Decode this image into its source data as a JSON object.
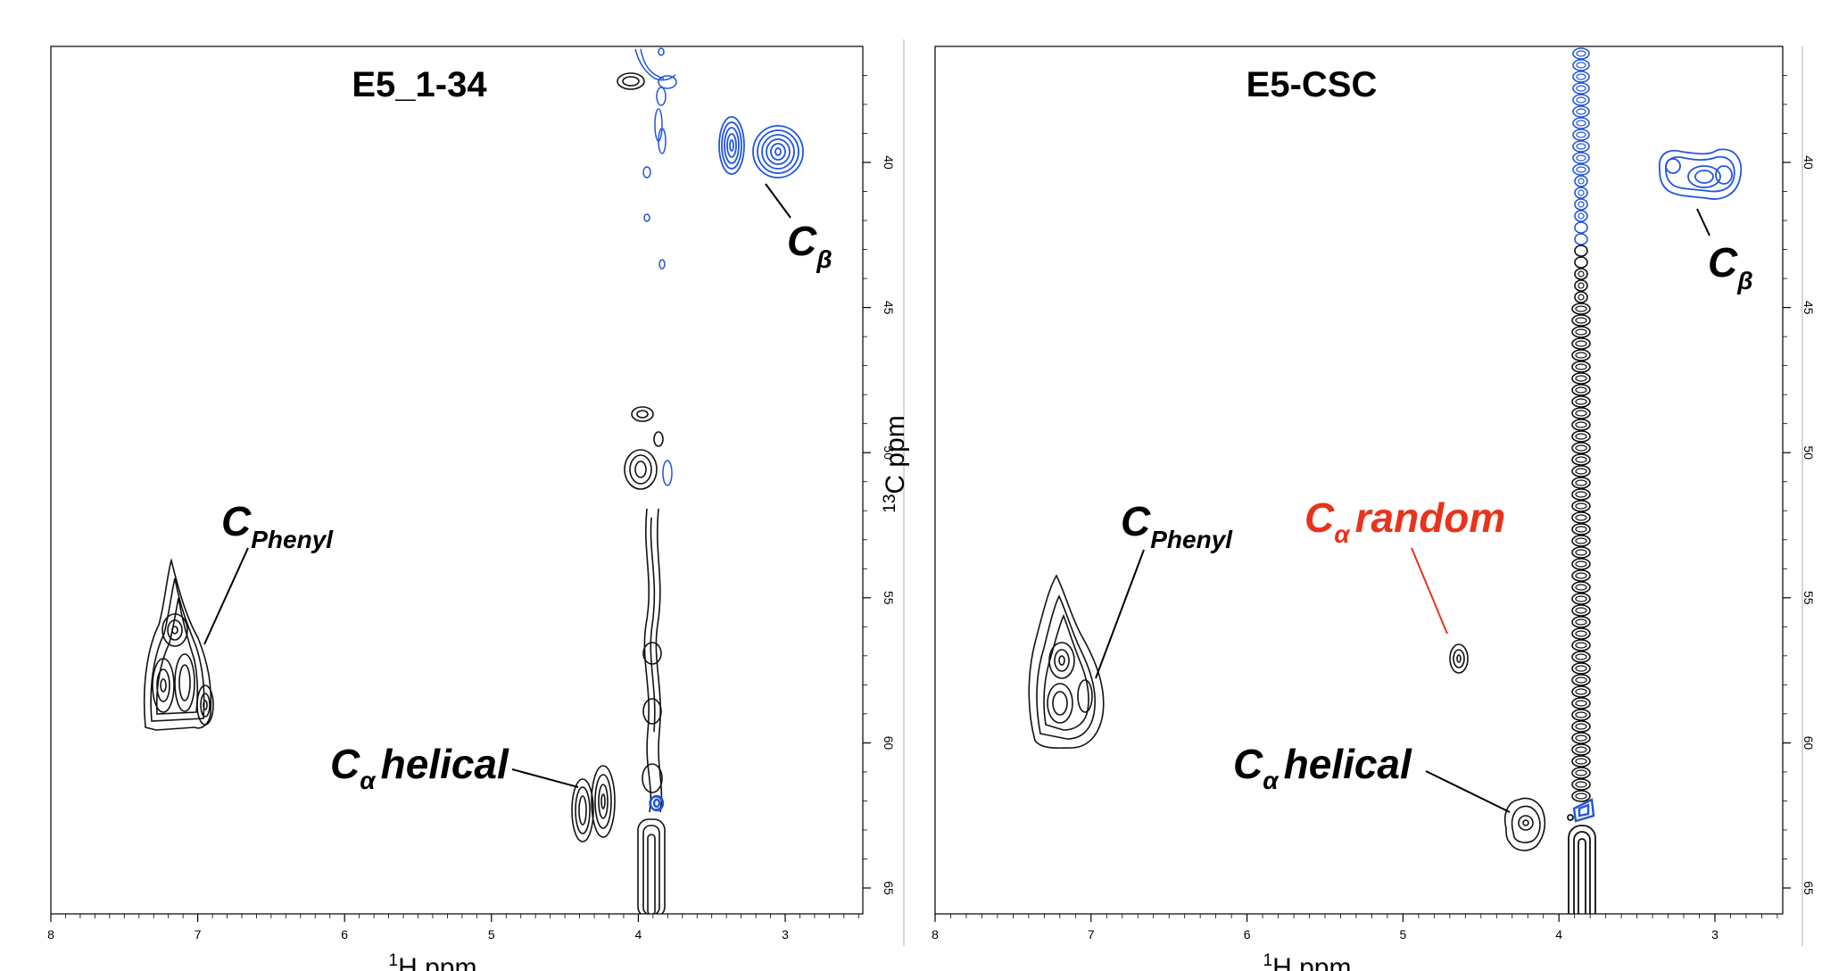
{
  "chart_data": [
    {
      "type": "contour",
      "title": "E5_1-34",
      "xlabel": "H ppm",
      "xlabel_isotope": "1",
      "ylabel": "C ppm",
      "ylabel_isotope": "13",
      "xlim": [
        8,
        2.5
      ],
      "ylim": [
        35.5,
        66
      ],
      "x_ticks": [
        "8",
        "7",
        "6",
        "5",
        "4",
        "3"
      ],
      "y_ticks": [
        "40",
        "45",
        "50",
        "55",
        "60",
        "65"
      ],
      "positive_color": "#000000",
      "negative_color": "#2255dd",
      "annotations": [
        {
          "main": "C",
          "sub": "Phenyl",
          "color": "#000000"
        },
        {
          "main": "C",
          "sub": "α",
          "tail": "helical",
          "color": "#000000"
        },
        {
          "main": "C",
          "sub": "β",
          "color": "#000000"
        }
      ],
      "peaks": [
        {
          "x": 3.25,
          "y": 39.6,
          "sign": "negative",
          "label": "Cβ"
        },
        {
          "x": 3.02,
          "y": 39.5,
          "sign": "negative",
          "label": "Cβ"
        },
        {
          "x": 7.2,
          "y": 57.5,
          "sign": "positive",
          "label": "CPhenyl"
        },
        {
          "x": 4.35,
          "y": 62.6,
          "sign": "positive",
          "label": "Cα helical"
        },
        {
          "x": 4.22,
          "y": 62.3,
          "sign": "positive",
          "label": "Cα helical"
        },
        {
          "x": 3.9,
          "y": 37.2,
          "sign": "positive"
        },
        {
          "x": 3.95,
          "y": 49.3,
          "sign": "positive"
        },
        {
          "x": 3.95,
          "y": 50.8,
          "sign": "positive"
        },
        {
          "x": 3.82,
          "y": 50.9,
          "sign": "negative"
        },
        {
          "x": 3.88,
          "y": 64.5,
          "sign": "positive"
        }
      ]
    },
    {
      "type": "contour",
      "title": "E5-CSC",
      "xlabel": "H ppm",
      "xlabel_isotope": "1",
      "ylabel": "",
      "xlim": [
        8,
        2.5
      ],
      "ylim": [
        35.5,
        66
      ],
      "x_ticks": [
        "8",
        "7",
        "6",
        "5",
        "4",
        "3"
      ],
      "y_ticks": [
        "40",
        "45",
        "50",
        "55",
        "60",
        "65"
      ],
      "positive_color": "#000000",
      "negative_color": "#2255dd",
      "annotations": [
        {
          "main": "C",
          "sub": "Phenyl",
          "color": "#000000"
        },
        {
          "main": "C",
          "sub": "α",
          "tail": "random",
          "color": "#e8331c"
        },
        {
          "main": "C",
          "sub": "α",
          "tail": "helical",
          "color": "#000000"
        },
        {
          "main": "C",
          "sub": "β",
          "color": "#000000"
        }
      ],
      "peaks": [
        {
          "x": 3.15,
          "y": 40.1,
          "sign": "negative",
          "label": "Cβ"
        },
        {
          "x": 7.2,
          "y": 58.2,
          "sign": "positive",
          "label": "CPhenyl"
        },
        {
          "x": 4.65,
          "y": 57.2,
          "sign": "positive",
          "label": "Cα random"
        },
        {
          "x": 4.25,
          "y": 62.9,
          "sign": "positive",
          "label": "Cα helical"
        },
        {
          "x": 3.85,
          "y": 64.0,
          "sign": "positive"
        }
      ]
    }
  ]
}
